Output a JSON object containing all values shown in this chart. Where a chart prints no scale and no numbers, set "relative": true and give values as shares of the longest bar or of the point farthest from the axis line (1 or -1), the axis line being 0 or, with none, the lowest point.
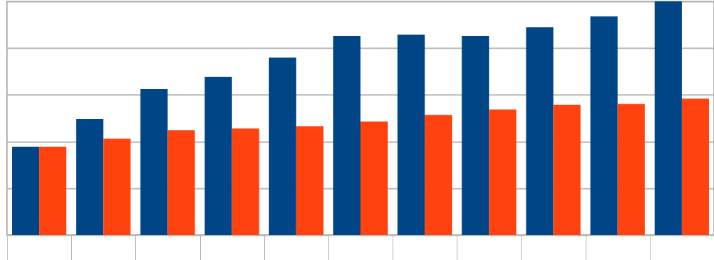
{
  "chart_data": {
    "type": "bar",
    "relative": true,
    "grid": "y",
    "categories": [
      null,
      null,
      null,
      null,
      null,
      null,
      null,
      null,
      null,
      null,
      null
    ],
    "series": [
      {
        "color": "#004586",
        "values": [
          0.378,
          0.497,
          0.625,
          0.676,
          0.76,
          0.851,
          0.858,
          0.851,
          0.889,
          0.936,
          1
        ]
      },
      {
        "color": "#ff420e",
        "values": [
          0.378,
          0.412,
          0.449,
          0.456,
          0.466,
          0.486,
          0.514,
          0.537,
          0.557,
          0.561,
          0.584
        ]
      }
    ]
  }
}
